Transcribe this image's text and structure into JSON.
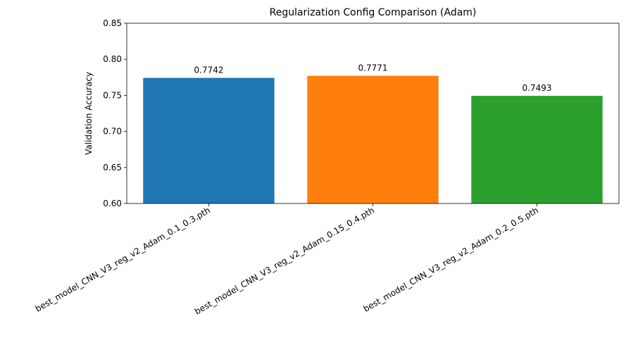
{
  "chart_data": {
    "type": "bar",
    "title": "Regularization Config Comparison (Adam)",
    "xlabel": "",
    "ylabel": "Validation Accuracy",
    "ylim": [
      0.6,
      0.85
    ],
    "yticks": [
      "0.60",
      "0.65",
      "0.70",
      "0.75",
      "0.80",
      "0.85"
    ],
    "categories": [
      "best_model_CNN_V3_reg_v2_Adam_0.1_0.3.pth",
      "best_model_CNN_V3_reg_v2_Adam_0.15_0.4.pth",
      "best_model_CNN_V3_reg_v2_Adam_0.2_0.5.pth"
    ],
    "values": [
      0.7742,
      0.7771,
      0.7493
    ],
    "data_labels": [
      "0.7742",
      "0.7771",
      "0.7493"
    ],
    "colors": [
      "#1f77b4",
      "#ff7f0e",
      "#2ca02c"
    ],
    "grid": false,
    "legend": false
  }
}
